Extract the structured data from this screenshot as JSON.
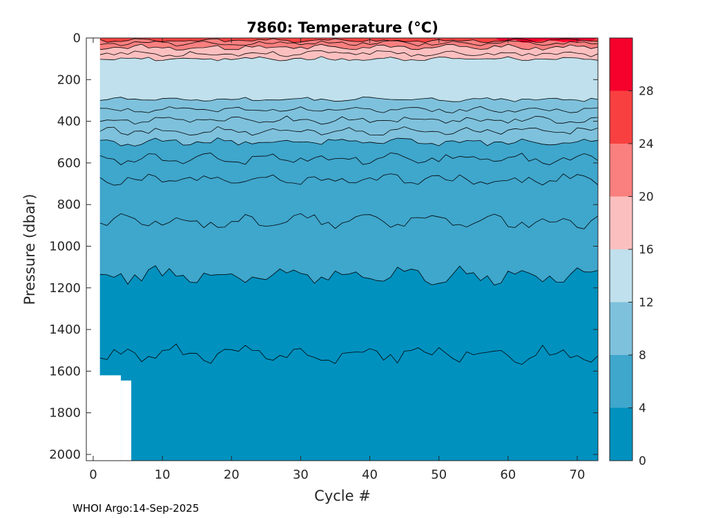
{
  "chart_data": {
    "type": "heatmap",
    "subtype": "filled-contour",
    "title": "7860:  Temperature (°C)",
    "xlabel": "Cycle #",
    "ylabel": "Pressure (dbar)",
    "xlim": [
      -1,
      73
    ],
    "ylim": [
      2030,
      0
    ],
    "x_ticks": [
      0,
      10,
      20,
      30,
      40,
      50,
      60,
      70
    ],
    "y_ticks": [
      0,
      200,
      400,
      600,
      800,
      1000,
      1200,
      1400,
      1600,
      1800,
      2000
    ],
    "colorbar": {
      "range": [
        0,
        32
      ],
      "ticks": [
        0,
        4,
        8,
        12,
        16,
        20,
        24,
        28
      ],
      "levels": [
        0,
        4,
        8,
        12,
        16,
        20,
        24,
        28,
        32
      ],
      "colors": [
        "#0091bf",
        "#3fa6cc",
        "#7ec1dc",
        "#bfe0ec",
        "#fcbfbf",
        "#fa7f7f",
        "#f84040",
        "#f6002c"
      ]
    },
    "contour_intervals_degC": {
      "warm_band_edges": [
        28,
        26,
        24,
        22,
        20,
        18,
        16,
        15,
        14
      ],
      "deep_edges": [
        13,
        12,
        11,
        10,
        9,
        8,
        7,
        6,
        5,
        4,
        3
      ]
    },
    "cycles": [
      1,
      73
    ],
    "isotherms_approx_depth_dbar": {
      "14": 100,
      "12": 295,
      "11": 345,
      "10": 395,
      "9": 445,
      "8": 500,
      "7": 580,
      "6": 680,
      "5": 880,
      "4": 1140,
      "3": 1520
    },
    "surface_temperature_degC": [
      26,
      24
    ]
  },
  "footer": "WHOI Argo:14-Sep-2025"
}
